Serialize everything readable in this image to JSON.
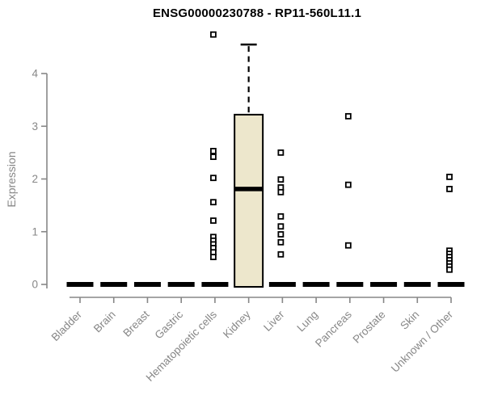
{
  "chart_data": {
    "type": "boxplot",
    "title": "ENSG00000230788 - RP11-560L11.1",
    "ylabel": "Expression",
    "xlabel": "",
    "yticks": [
      0,
      1,
      2,
      3,
      4
    ],
    "ylim": [
      0,
      4.8
    ],
    "grid": false,
    "legend": "none",
    "colors": {
      "box_fill": "#ede7cc",
      "box_stroke": "#000000",
      "median": "#000000",
      "outlier": "#000000",
      "axis": "#878787",
      "tick_label": "#878787",
      "title": "#000000"
    },
    "categories": [
      "Bladder",
      "Brain",
      "Breast",
      "Gastric",
      "Hematopoietic cells",
      "Kidney",
      "Liver",
      "Lung",
      "Pancreas",
      "Prostate",
      "Skin",
      "Unknown / Other"
    ],
    "boxes": [
      {
        "category": "Bladder",
        "q1": 0,
        "median": 0,
        "q3": 0,
        "whisker_low": 0,
        "whisker_high": 0,
        "outliers": []
      },
      {
        "category": "Brain",
        "q1": 0,
        "median": 0,
        "q3": 0,
        "whisker_low": 0,
        "whisker_high": 0,
        "outliers": []
      },
      {
        "category": "Breast",
        "q1": 0,
        "median": 0,
        "q3": 0,
        "whisker_low": 0,
        "whisker_high": 0,
        "outliers": []
      },
      {
        "category": "Gastric",
        "q1": 0,
        "median": 0,
        "q3": 0,
        "whisker_low": 0,
        "whisker_high": 0,
        "outliers": []
      },
      {
        "category": "Hematopoietic cells",
        "q1": 0,
        "median": 0,
        "q3": 0,
        "whisker_low": 0,
        "whisker_high": 0,
        "outliers": [
          4.74,
          2.53,
          2.42,
          2.02,
          1.56,
          1.21,
          0.9,
          0.83,
          0.76,
          0.69,
          0.61,
          0.52
        ]
      },
      {
        "category": "Kidney",
        "q1": 0,
        "median": 1.81,
        "q3": 3.22,
        "whisker_low": 0,
        "whisker_high": 4.55,
        "outliers": []
      },
      {
        "category": "Liver",
        "q1": 0,
        "median": 0,
        "q3": 0,
        "whisker_low": 0,
        "whisker_high": 0,
        "outliers": [
          2.5,
          1.99,
          1.84,
          1.75,
          1.29,
          1.1,
          0.95,
          0.8,
          0.57
        ]
      },
      {
        "category": "Lung",
        "q1": 0,
        "median": 0,
        "q3": 0,
        "whisker_low": 0,
        "whisker_high": 0,
        "outliers": []
      },
      {
        "category": "Pancreas",
        "q1": 0,
        "median": 0,
        "q3": 0,
        "whisker_low": 0,
        "whisker_high": 0,
        "outliers": [
          3.19,
          1.89,
          0.74
        ]
      },
      {
        "category": "Prostate",
        "q1": 0,
        "median": 0,
        "q3": 0,
        "whisker_low": 0,
        "whisker_high": 0,
        "outliers": []
      },
      {
        "category": "Skin",
        "q1": 0,
        "median": 0,
        "q3": 0,
        "whisker_low": 0,
        "whisker_high": 0,
        "outliers": []
      },
      {
        "category": "Unknown / Other",
        "q1": 0,
        "median": 0,
        "q3": 0,
        "whisker_low": 0,
        "whisker_high": 0,
        "outliers": [
          2.04,
          1.81,
          0.64,
          0.58,
          0.52,
          0.46,
          0.4,
          0.34,
          0.28
        ]
      }
    ]
  }
}
